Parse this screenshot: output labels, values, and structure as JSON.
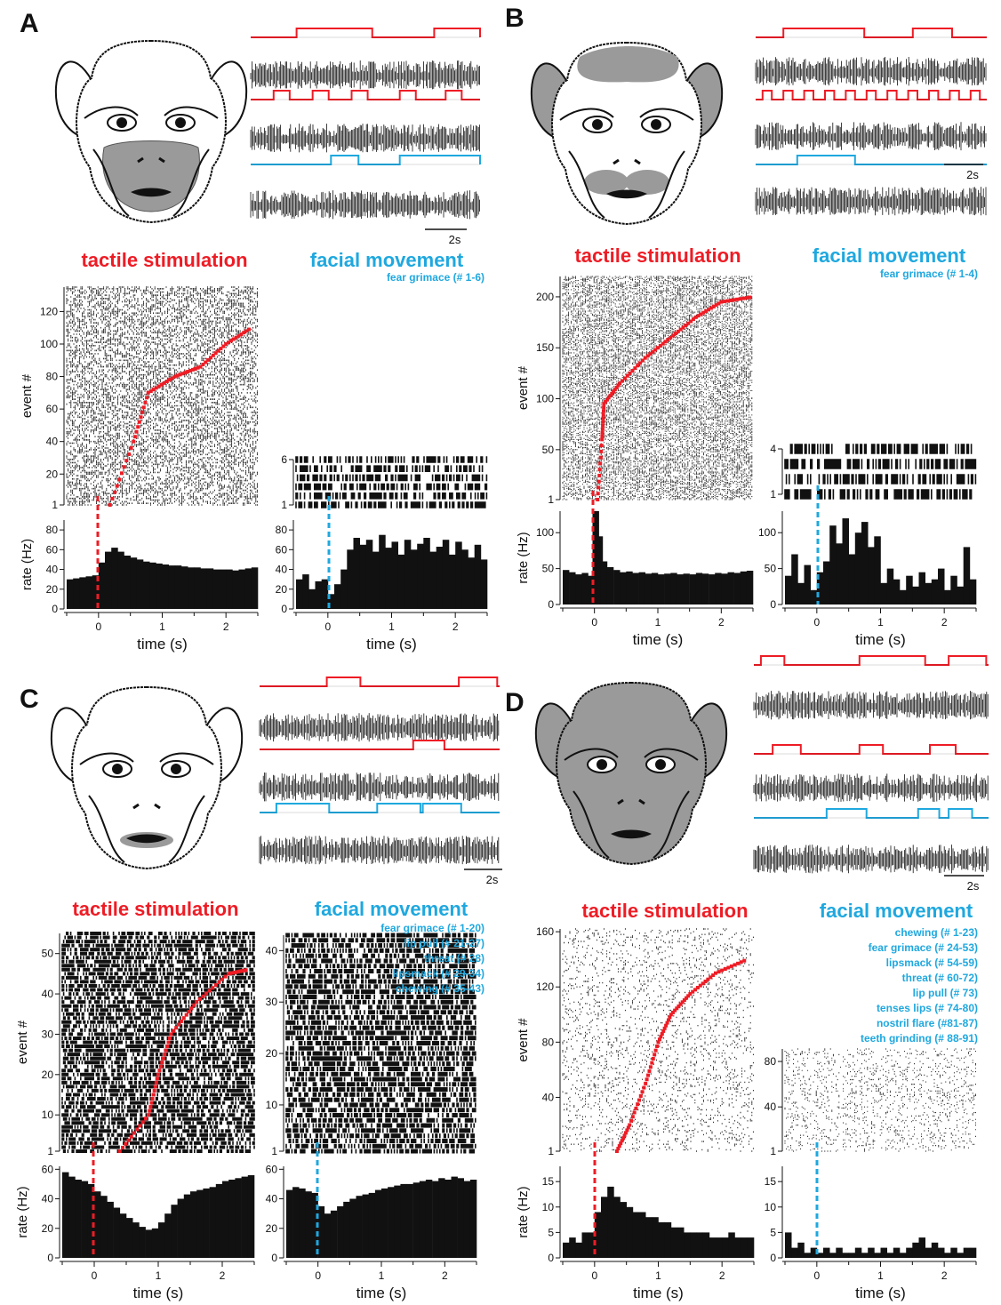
{
  "colors": {
    "stim": "#ee1c25",
    "face": "#1fa8df",
    "spike": "#000000",
    "face_fill": "#9a9a9a"
  },
  "chart_data": [
    {
      "panel": "A",
      "type": "bar",
      "title": "tactile stimulation",
      "xlabel": "time (s)",
      "ylabel": "rate (Hz)",
      "raster_ylabel": "event #",
      "raster_ticks": [
        1,
        20,
        40,
        60,
        80,
        100,
        120
      ],
      "raster_events": 135,
      "rate_ticks": [
        0,
        20,
        40,
        60,
        80
      ],
      "rate_ylim": [
        0,
        90
      ],
      "xticks": [
        0,
        1,
        2
      ],
      "xlim": [
        -0.5,
        2.5
      ],
      "x": [
        -0.45,
        -0.35,
        -0.25,
        -0.15,
        -0.05,
        0.05,
        0.15,
        0.25,
        0.35,
        0.45,
        0.55,
        0.65,
        0.75,
        0.85,
        0.95,
        1.05,
        1.15,
        1.25,
        1.35,
        1.45,
        1.55,
        1.65,
        1.75,
        1.85,
        1.95,
        2.05,
        2.15,
        2.25,
        2.35,
        2.45
      ],
      "values": [
        30,
        31,
        32,
        33,
        34,
        47,
        58,
        62,
        58,
        54,
        52,
        50,
        48,
        47,
        46,
        45,
        44,
        44,
        43,
        42,
        42,
        41,
        41,
        40,
        40,
        40,
        39,
        40,
        41,
        42
      ],
      "sorted_event_curve": [
        [
          0.18,
          1
        ],
        [
          0.55,
          40
        ],
        [
          0.78,
          70
        ],
        [
          1.2,
          80
        ],
        [
          1.6,
          86
        ],
        [
          2.0,
          100
        ],
        [
          2.4,
          110
        ]
      ]
    },
    {
      "panel": "A",
      "type": "bar",
      "title": "facial movement",
      "legend": [
        "fear grimace (# 1-6)"
      ],
      "xlabel": "time (s)",
      "ylabel": "",
      "raster_ticks": [
        1,
        6
      ],
      "raster_events": 6,
      "rate_ticks": [
        0,
        20,
        40,
        60,
        80
      ],
      "rate_ylim": [
        0,
        90
      ],
      "xticks": [
        0,
        1,
        2
      ],
      "xlim": [
        -0.5,
        2.5
      ],
      "x": [
        -0.45,
        -0.35,
        -0.25,
        -0.15,
        -0.05,
        0.05,
        0.15,
        0.25,
        0.35,
        0.45,
        0.55,
        0.65,
        0.75,
        0.85,
        0.95,
        1.05,
        1.15,
        1.25,
        1.35,
        1.45,
        1.55,
        1.65,
        1.75,
        1.85,
        1.95,
        2.05,
        2.15,
        2.25,
        2.35,
        2.45
      ],
      "values": [
        30,
        35,
        20,
        28,
        30,
        15,
        25,
        40,
        60,
        72,
        65,
        70,
        58,
        75,
        62,
        68,
        55,
        70,
        60,
        66,
        72,
        58,
        63,
        70,
        55,
        68,
        60,
        52,
        65,
        50
      ]
    },
    {
      "panel": "B",
      "type": "bar",
      "title": "tactile stimulation",
      "xlabel": "time (s)",
      "ylabel": "rate (Hz)",
      "raster_ylabel": "event #",
      "raster_ticks": [
        1,
        50,
        100,
        150,
        200
      ],
      "raster_events": 220,
      "rate_ticks": [
        0,
        50,
        100
      ],
      "rate_ylim": [
        0,
        130
      ],
      "xticks": [
        0,
        1,
        2
      ],
      "xlim": [
        -0.5,
        2.5
      ],
      "x": [
        -0.45,
        -0.35,
        -0.25,
        -0.15,
        -0.05,
        0.02,
        0.08,
        0.15,
        0.25,
        0.35,
        0.45,
        0.55,
        0.65,
        0.75,
        0.85,
        0.95,
        1.05,
        1.15,
        1.25,
        1.35,
        1.45,
        1.55,
        1.65,
        1.75,
        1.85,
        1.95,
        2.05,
        2.15,
        2.25,
        2.35,
        2.45
      ],
      "values": [
        48,
        45,
        42,
        44,
        40,
        130,
        95,
        60,
        52,
        48,
        45,
        46,
        44,
        45,
        43,
        44,
        42,
        43,
        44,
        42,
        43,
        42,
        44,
        43,
        42,
        44,
        43,
        45,
        44,
        46,
        47
      ],
      "sorted_event_curve": [
        [
          0.05,
          1
        ],
        [
          0.12,
          60
        ],
        [
          0.15,
          95
        ],
        [
          0.4,
          115
        ],
        [
          0.8,
          140
        ],
        [
          1.2,
          160
        ],
        [
          1.6,
          180
        ],
        [
          2.0,
          195
        ],
        [
          2.5,
          200
        ]
      ]
    },
    {
      "panel": "B",
      "type": "bar",
      "title": "facial movement",
      "legend": [
        "fear grimace (# 1-4)"
      ],
      "xlabel": "time (s)",
      "ylabel": "",
      "raster_ticks": [
        1,
        4
      ],
      "raster_events": 4,
      "rate_ticks": [
        0,
        50,
        100
      ],
      "rate_ylim": [
        0,
        130
      ],
      "xticks": [
        0,
        1,
        2
      ],
      "xlim": [
        -0.5,
        2.5
      ],
      "x": [
        -0.45,
        -0.35,
        -0.25,
        -0.15,
        -0.05,
        0.05,
        0.15,
        0.25,
        0.35,
        0.45,
        0.55,
        0.65,
        0.75,
        0.85,
        0.95,
        1.05,
        1.15,
        1.25,
        1.35,
        1.45,
        1.55,
        1.65,
        1.75,
        1.85,
        1.95,
        2.05,
        2.15,
        2.25,
        2.35,
        2.45
      ],
      "values": [
        40,
        70,
        30,
        55,
        20,
        45,
        60,
        110,
        85,
        120,
        70,
        100,
        115,
        80,
        95,
        30,
        50,
        35,
        20,
        40,
        25,
        45,
        30,
        35,
        50,
        20,
        40,
        25,
        80,
        35
      ]
    },
    {
      "panel": "C",
      "type": "bar",
      "title": "tactile stimulation",
      "xlabel": "time (s)",
      "ylabel": "rate (Hz)",
      "raster_ylabel": "event #",
      "raster_ticks": [
        1,
        10,
        20,
        30,
        40,
        50
      ],
      "raster_events": 55,
      "rate_ticks": [
        0,
        20,
        40,
        60
      ],
      "rate_ylim": [
        0,
        62
      ],
      "xticks": [
        0,
        1,
        2
      ],
      "xlim": [
        -0.5,
        2.5
      ],
      "x": [
        -0.45,
        -0.35,
        -0.25,
        -0.15,
        -0.05,
        0.05,
        0.15,
        0.25,
        0.35,
        0.45,
        0.55,
        0.65,
        0.75,
        0.85,
        0.95,
        1.05,
        1.15,
        1.25,
        1.35,
        1.45,
        1.55,
        1.65,
        1.75,
        1.85,
        1.95,
        2.05,
        2.15,
        2.25,
        2.35,
        2.45
      ],
      "values": [
        58,
        55,
        53,
        52,
        50,
        45,
        42,
        38,
        34,
        30,
        27,
        24,
        21,
        19,
        20,
        24,
        30,
        36,
        40,
        43,
        45,
        46,
        47,
        48,
        50,
        52,
        53,
        54,
        55,
        56
      ],
      "sorted_event_curve": [
        [
          0.4,
          1
        ],
        [
          0.85,
          10
        ],
        [
          1.0,
          20
        ],
        [
          1.2,
          30
        ],
        [
          1.6,
          38
        ],
        [
          2.1,
          45
        ],
        [
          2.4,
          46
        ]
      ]
    },
    {
      "panel": "C",
      "type": "bar",
      "title": "facial movement",
      "legend": [
        "fear grimace (# 1-20)",
        "lip pull (# 21-27)",
        "threat (# 28)",
        "lipsmack (# 29-34)",
        "chewing (# 35-43)"
      ],
      "xlabel": "time (s)",
      "ylabel": "",
      "raster_ticks": [
        1,
        10,
        20,
        30,
        40
      ],
      "raster_events": 43,
      "rate_ticks": [
        0,
        20,
        40,
        60
      ],
      "rate_ylim": [
        0,
        62
      ],
      "xticks": [
        0,
        1,
        2
      ],
      "xlim": [
        -0.5,
        2.5
      ],
      "x": [
        -0.45,
        -0.35,
        -0.25,
        -0.15,
        -0.05,
        0.05,
        0.15,
        0.25,
        0.35,
        0.45,
        0.55,
        0.65,
        0.75,
        0.85,
        0.95,
        1.05,
        1.15,
        1.25,
        1.35,
        1.45,
        1.55,
        1.65,
        1.75,
        1.85,
        1.95,
        2.05,
        2.15,
        2.25,
        2.35,
        2.45
      ],
      "values": [
        46,
        48,
        47,
        45,
        44,
        35,
        30,
        32,
        35,
        38,
        40,
        42,
        43,
        44,
        46,
        47,
        48,
        49,
        50,
        50,
        51,
        52,
        53,
        52,
        54,
        53,
        55,
        54,
        52,
        53
      ]
    },
    {
      "panel": "D",
      "type": "bar",
      "title": "tactile stimulation",
      "xlabel": "time (s)",
      "ylabel": "rate (Hz)",
      "raster_ylabel": "event #",
      "raster_ticks": [
        1,
        40,
        80,
        120,
        160
      ],
      "raster_events": 162,
      "rate_ticks": [
        0,
        5,
        10,
        15
      ],
      "rate_ylim": [
        0,
        18
      ],
      "xticks": [
        0,
        1,
        2
      ],
      "xlim": [
        -0.5,
        2.5
      ],
      "x": [
        -0.45,
        -0.35,
        -0.25,
        -0.15,
        -0.05,
        0.05,
        0.15,
        0.25,
        0.35,
        0.45,
        0.55,
        0.65,
        0.75,
        0.85,
        0.95,
        1.05,
        1.15,
        1.25,
        1.35,
        1.45,
        1.55,
        1.65,
        1.75,
        1.85,
        1.95,
        2.05,
        2.15,
        2.25,
        2.35,
        2.45
      ],
      "values": [
        3,
        4,
        3,
        5,
        5,
        9,
        12,
        14,
        12,
        11,
        10,
        9,
        9,
        8,
        8,
        7,
        7,
        6,
        6,
        5,
        5,
        5,
        5,
        4,
        4,
        4,
        5,
        4,
        4,
        4
      ],
      "sorted_event_curve": [
        [
          0.35,
          1
        ],
        [
          0.55,
          20
        ],
        [
          0.8,
          50
        ],
        [
          1.0,
          80
        ],
        [
          1.2,
          100
        ],
        [
          1.5,
          115
        ],
        [
          1.9,
          130
        ],
        [
          2.4,
          140
        ]
      ]
    },
    {
      "panel": "D",
      "type": "bar",
      "title": "facial movement",
      "legend": [
        "chewing (# 1-23)",
        "fear grimace (# 24-53)",
        "lipsmack (# 54-59)",
        "threat (# 60-72)",
        "lip pull (# 73)",
        "tenses lips (# 74-80)",
        "nostril flare (#81-87)",
        "teeth grinding (# 88-91)"
      ],
      "xlabel": "time (s)",
      "ylabel": "",
      "raster_ticks": [
        1,
        40,
        80
      ],
      "raster_events": 91,
      "rate_ticks": [
        0,
        5,
        10,
        15
      ],
      "rate_ylim": [
        0,
        18
      ],
      "xticks": [
        0,
        1,
        2
      ],
      "xlim": [
        -0.5,
        2.5
      ],
      "x": [
        -0.45,
        -0.35,
        -0.25,
        -0.15,
        -0.05,
        0.05,
        0.15,
        0.25,
        0.35,
        0.45,
        0.55,
        0.65,
        0.75,
        0.85,
        0.95,
        1.05,
        1.15,
        1.25,
        1.35,
        1.45,
        1.55,
        1.65,
        1.75,
        1.85,
        1.95,
        2.05,
        2.15,
        2.25,
        2.35,
        2.45
      ],
      "values": [
        5,
        2,
        3,
        1,
        2,
        1,
        2,
        1,
        2,
        1,
        1,
        2,
        1,
        2,
        1,
        2,
        1,
        2,
        1,
        2,
        3,
        4,
        2,
        3,
        2,
        1,
        2,
        1,
        2,
        2
      ]
    }
  ],
  "panels": [
    {
      "label": "A",
      "scalebar": "2s"
    },
    {
      "label": "B",
      "scalebar": "2s"
    },
    {
      "label": "C",
      "scalebar": "2s"
    },
    {
      "label": "D",
      "scalebar": "2s"
    }
  ]
}
